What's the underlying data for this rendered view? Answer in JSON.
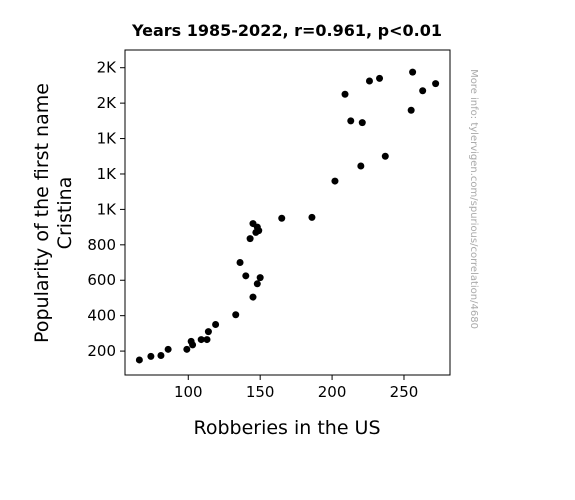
{
  "chart_data": {
    "type": "scatter",
    "title": "Years 1985-2022, r=0.961, p<0.01",
    "xlabel": "Robberies in the US",
    "ylabel": [
      "Popularity of the first name",
      "Cristina"
    ],
    "watermark": "More info: tylervigen.com/spurious/correlation/4680",
    "xlim": [
      56,
      282
    ],
    "ylim": [
      65,
      1900
    ],
    "x_ticks": [
      {
        "value": 100,
        "label": "100"
      },
      {
        "value": 150,
        "label": "150"
      },
      {
        "value": 200,
        "label": "200"
      },
      {
        "value": 250,
        "label": "250"
      }
    ],
    "y_ticks": [
      {
        "value": 200,
        "label": "200"
      },
      {
        "value": 400,
        "label": "400"
      },
      {
        "value": 600,
        "label": "600"
      },
      {
        "value": 800,
        "label": "800"
      },
      {
        "value": 1000,
        "label": "1K"
      },
      {
        "value": 1200,
        "label": "1K"
      },
      {
        "value": 1400,
        "label": "1K"
      },
      {
        "value": 1600,
        "label": "2K"
      },
      {
        "value": 1800,
        "label": "2K"
      }
    ],
    "marker_color": "#000000",
    "grid": false,
    "points": [
      {
        "x": 66,
        "y": 150
      },
      {
        "x": 74,
        "y": 170
      },
      {
        "x": 81,
        "y": 175
      },
      {
        "x": 86,
        "y": 210
      },
      {
        "x": 99,
        "y": 210
      },
      {
        "x": 102,
        "y": 255
      },
      {
        "x": 103,
        "y": 235
      },
      {
        "x": 109,
        "y": 265
      },
      {
        "x": 113,
        "y": 265
      },
      {
        "x": 114,
        "y": 310
      },
      {
        "x": 119,
        "y": 350
      },
      {
        "x": 133,
        "y": 405
      },
      {
        "x": 136,
        "y": 700
      },
      {
        "x": 140,
        "y": 625
      },
      {
        "x": 143,
        "y": 835
      },
      {
        "x": 145,
        "y": 920
      },
      {
        "x": 145,
        "y": 505
      },
      {
        "x": 147,
        "y": 870
      },
      {
        "x": 148,
        "y": 900
      },
      {
        "x": 148,
        "y": 580
      },
      {
        "x": 149,
        "y": 880
      },
      {
        "x": 150,
        "y": 615
      },
      {
        "x": 165,
        "y": 950
      },
      {
        "x": 186,
        "y": 955
      },
      {
        "x": 202,
        "y": 1160
      },
      {
        "x": 209,
        "y": 1650
      },
      {
        "x": 213,
        "y": 1500
      },
      {
        "x": 220,
        "y": 1245
      },
      {
        "x": 221,
        "y": 1490
      },
      {
        "x": 226,
        "y": 1725
      },
      {
        "x": 233,
        "y": 1740
      },
      {
        "x": 237,
        "y": 1300
      },
      {
        "x": 255,
        "y": 1560
      },
      {
        "x": 256,
        "y": 1775
      },
      {
        "x": 263,
        "y": 1670
      },
      {
        "x": 272,
        "y": 1710
      }
    ]
  }
}
